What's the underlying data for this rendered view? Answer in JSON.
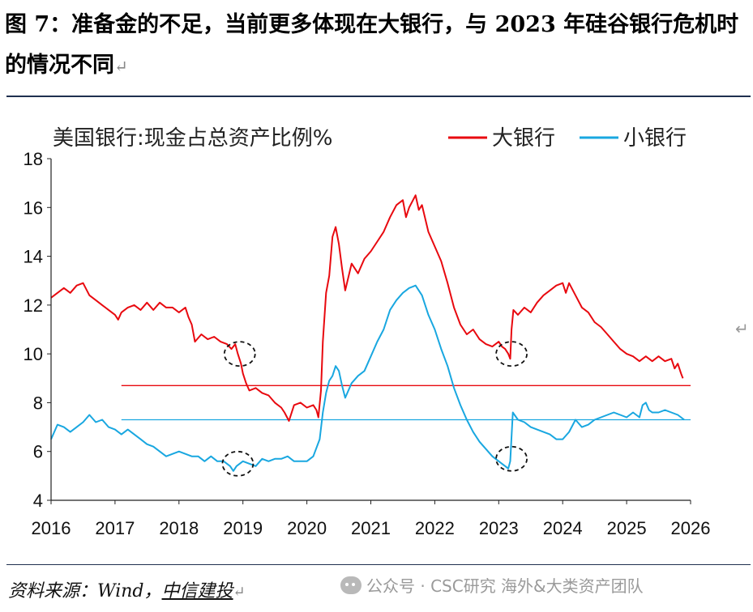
{
  "figure": {
    "title": "图 7：准备金的不足，当前更多体现在大银行，与 2023 年硅谷银行危机时的情况不同",
    "source_prefix": "资料来源：Wind，",
    "source_org": "中信建投",
    "watermark": "公众号 · CSC研究 海外&大类资产团队",
    "return_mark": "↵"
  },
  "chart_data": {
    "type": "line",
    "title": "美国银行:现金占总资产比例%",
    "xlabel": "",
    "ylabel": "",
    "xlim": [
      2016,
      2026
    ],
    "ylim": [
      4,
      18
    ],
    "x_ticks": [
      "2016",
      "2017",
      "2018",
      "2019",
      "2020",
      "2021",
      "2022",
      "2023",
      "2024",
      "2025",
      "2026"
    ],
    "y_ticks": [
      "4",
      "6",
      "8",
      "10",
      "12",
      "14",
      "16",
      "18"
    ],
    "series": [
      {
        "name": "大银行",
        "color": "#e8090f",
        "points": [
          [
            2016.0,
            12.3
          ],
          [
            2016.1,
            12.5
          ],
          [
            2016.2,
            12.7
          ],
          [
            2016.3,
            12.5
          ],
          [
            2016.4,
            12.8
          ],
          [
            2016.5,
            12.9
          ],
          [
            2016.6,
            12.4
          ],
          [
            2016.7,
            12.2
          ],
          [
            2016.8,
            12.0
          ],
          [
            2016.9,
            11.8
          ],
          [
            2017.0,
            11.6
          ],
          [
            2017.05,
            11.4
          ],
          [
            2017.1,
            11.7
          ],
          [
            2017.2,
            11.9
          ],
          [
            2017.3,
            12.0
          ],
          [
            2017.4,
            11.8
          ],
          [
            2017.5,
            12.1
          ],
          [
            2017.6,
            11.8
          ],
          [
            2017.7,
            12.1
          ],
          [
            2017.8,
            11.9
          ],
          [
            2017.9,
            11.9
          ],
          [
            2018.0,
            11.7
          ],
          [
            2018.1,
            11.9
          ],
          [
            2018.15,
            11.5
          ],
          [
            2018.2,
            11.2
          ],
          [
            2018.25,
            10.5
          ],
          [
            2018.35,
            10.8
          ],
          [
            2018.45,
            10.6
          ],
          [
            2018.55,
            10.7
          ],
          [
            2018.65,
            10.5
          ],
          [
            2018.75,
            10.4
          ],
          [
            2018.82,
            10.2
          ],
          [
            2018.88,
            10.4
          ],
          [
            2018.92,
            10.0
          ],
          [
            2018.97,
            9.6
          ],
          [
            2019.0,
            9.2
          ],
          [
            2019.05,
            8.8
          ],
          [
            2019.1,
            8.5
          ],
          [
            2019.2,
            8.6
          ],
          [
            2019.3,
            8.4
          ],
          [
            2019.4,
            8.3
          ],
          [
            2019.5,
            8.0
          ],
          [
            2019.6,
            7.8
          ],
          [
            2019.65,
            7.6
          ],
          [
            2019.72,
            7.25
          ],
          [
            2019.8,
            7.9
          ],
          [
            2019.9,
            8.0
          ],
          [
            2020.0,
            7.8
          ],
          [
            2020.1,
            7.9
          ],
          [
            2020.15,
            7.7
          ],
          [
            2020.18,
            7.4
          ],
          [
            2020.22,
            8.5
          ],
          [
            2020.25,
            10.5
          ],
          [
            2020.3,
            12.5
          ],
          [
            2020.35,
            13.2
          ],
          [
            2020.4,
            14.8
          ],
          [
            2020.45,
            15.2
          ],
          [
            2020.5,
            14.5
          ],
          [
            2020.55,
            13.5
          ],
          [
            2020.6,
            12.6
          ],
          [
            2020.7,
            13.7
          ],
          [
            2020.8,
            13.3
          ],
          [
            2020.9,
            13.9
          ],
          [
            2021.0,
            14.2
          ],
          [
            2021.1,
            14.6
          ],
          [
            2021.2,
            15.0
          ],
          [
            2021.3,
            15.6
          ],
          [
            2021.4,
            16.1
          ],
          [
            2021.5,
            16.3
          ],
          [
            2021.55,
            15.6
          ],
          [
            2021.6,
            16.0
          ],
          [
            2021.7,
            16.5
          ],
          [
            2021.75,
            15.9
          ],
          [
            2021.8,
            16.1
          ],
          [
            2021.9,
            15.0
          ],
          [
            2022.0,
            14.4
          ],
          [
            2022.1,
            13.8
          ],
          [
            2022.2,
            12.9
          ],
          [
            2022.3,
            11.9
          ],
          [
            2022.4,
            11.2
          ],
          [
            2022.5,
            10.8
          ],
          [
            2022.6,
            11.0
          ],
          [
            2022.7,
            10.6
          ],
          [
            2022.8,
            10.4
          ],
          [
            2022.9,
            10.3
          ],
          [
            2023.0,
            10.5
          ],
          [
            2023.05,
            10.3
          ],
          [
            2023.1,
            10.2
          ],
          [
            2023.15,
            10.0
          ],
          [
            2023.18,
            9.8
          ],
          [
            2023.2,
            11.0
          ],
          [
            2023.23,
            11.8
          ],
          [
            2023.3,
            11.6
          ],
          [
            2023.4,
            11.9
          ],
          [
            2023.5,
            11.7
          ],
          [
            2023.6,
            12.1
          ],
          [
            2023.7,
            12.4
          ],
          [
            2023.8,
            12.6
          ],
          [
            2023.9,
            12.8
          ],
          [
            2024.0,
            12.9
          ],
          [
            2024.05,
            12.5
          ],
          [
            2024.1,
            12.9
          ],
          [
            2024.2,
            12.4
          ],
          [
            2024.3,
            11.9
          ],
          [
            2024.4,
            11.7
          ],
          [
            2024.5,
            11.3
          ],
          [
            2024.6,
            11.1
          ],
          [
            2024.7,
            10.8
          ],
          [
            2024.8,
            10.5
          ],
          [
            2024.9,
            10.2
          ],
          [
            2025.0,
            10.0
          ],
          [
            2025.1,
            9.9
          ],
          [
            2025.2,
            9.7
          ],
          [
            2025.3,
            9.9
          ],
          [
            2025.4,
            9.7
          ],
          [
            2025.5,
            9.9
          ],
          [
            2025.6,
            9.7
          ],
          [
            2025.7,
            9.8
          ],
          [
            2025.75,
            9.4
          ],
          [
            2025.8,
            9.6
          ],
          [
            2025.85,
            9.2
          ],
          [
            2025.88,
            9.0
          ]
        ]
      },
      {
        "name": "小银行",
        "color": "#19a7e0",
        "points": [
          [
            2016.0,
            6.5
          ],
          [
            2016.1,
            7.1
          ],
          [
            2016.2,
            7.0
          ],
          [
            2016.3,
            6.8
          ],
          [
            2016.4,
            7.0
          ],
          [
            2016.5,
            7.2
          ],
          [
            2016.6,
            7.5
          ],
          [
            2016.7,
            7.2
          ],
          [
            2016.8,
            7.3
          ],
          [
            2016.9,
            7.0
          ],
          [
            2017.0,
            6.9
          ],
          [
            2017.1,
            6.7
          ],
          [
            2017.2,
            6.9
          ],
          [
            2017.3,
            6.7
          ],
          [
            2017.4,
            6.5
          ],
          [
            2017.5,
            6.3
          ],
          [
            2017.6,
            6.2
          ],
          [
            2017.7,
            6.0
          ],
          [
            2017.8,
            5.8
          ],
          [
            2017.9,
            5.9
          ],
          [
            2018.0,
            6.0
          ],
          [
            2018.1,
            5.9
          ],
          [
            2018.2,
            5.8
          ],
          [
            2018.3,
            5.8
          ],
          [
            2018.4,
            5.6
          ],
          [
            2018.5,
            5.8
          ],
          [
            2018.6,
            5.6
          ],
          [
            2018.7,
            5.6
          ],
          [
            2018.8,
            5.4
          ],
          [
            2018.85,
            5.2
          ],
          [
            2018.9,
            5.4
          ],
          [
            2019.0,
            5.6
          ],
          [
            2019.1,
            5.5
          ],
          [
            2019.2,
            5.4
          ],
          [
            2019.3,
            5.7
          ],
          [
            2019.4,
            5.6
          ],
          [
            2019.5,
            5.7
          ],
          [
            2019.6,
            5.7
          ],
          [
            2019.7,
            5.8
          ],
          [
            2019.8,
            5.6
          ],
          [
            2019.9,
            5.6
          ],
          [
            2020.0,
            5.6
          ],
          [
            2020.1,
            5.8
          ],
          [
            2020.2,
            6.5
          ],
          [
            2020.25,
            7.6
          ],
          [
            2020.3,
            8.4
          ],
          [
            2020.35,
            8.9
          ],
          [
            2020.4,
            9.1
          ],
          [
            2020.45,
            9.5
          ],
          [
            2020.5,
            9.3
          ],
          [
            2020.55,
            8.7
          ],
          [
            2020.6,
            8.2
          ],
          [
            2020.7,
            8.8
          ],
          [
            2020.8,
            9.1
          ],
          [
            2020.9,
            9.3
          ],
          [
            2021.0,
            9.9
          ],
          [
            2021.1,
            10.5
          ],
          [
            2021.2,
            11.0
          ],
          [
            2021.3,
            11.8
          ],
          [
            2021.4,
            12.2
          ],
          [
            2021.5,
            12.5
          ],
          [
            2021.6,
            12.7
          ],
          [
            2021.7,
            12.8
          ],
          [
            2021.8,
            12.4
          ],
          [
            2021.9,
            11.6
          ],
          [
            2022.0,
            11.0
          ],
          [
            2022.1,
            10.2
          ],
          [
            2022.2,
            9.5
          ],
          [
            2022.3,
            8.6
          ],
          [
            2022.4,
            7.9
          ],
          [
            2022.5,
            7.3
          ],
          [
            2022.6,
            6.8
          ],
          [
            2022.7,
            6.4
          ],
          [
            2022.8,
            6.1
          ],
          [
            2022.9,
            5.8
          ],
          [
            2023.0,
            5.6
          ],
          [
            2023.1,
            5.4
          ],
          [
            2023.15,
            5.3
          ],
          [
            2023.18,
            5.6
          ],
          [
            2023.2,
            6.6
          ],
          [
            2023.22,
            7.6
          ],
          [
            2023.3,
            7.3
          ],
          [
            2023.4,
            7.2
          ],
          [
            2023.5,
            7.0
          ],
          [
            2023.6,
            6.9
          ],
          [
            2023.7,
            6.8
          ],
          [
            2023.8,
            6.7
          ],
          [
            2023.9,
            6.5
          ],
          [
            2024.0,
            6.5
          ],
          [
            2024.1,
            6.8
          ],
          [
            2024.2,
            7.3
          ],
          [
            2024.3,
            7.0
          ],
          [
            2024.4,
            7.1
          ],
          [
            2024.5,
            7.3
          ],
          [
            2024.6,
            7.4
          ],
          [
            2024.7,
            7.5
          ],
          [
            2024.8,
            7.6
          ],
          [
            2024.9,
            7.5
          ],
          [
            2025.0,
            7.4
          ],
          [
            2025.1,
            7.6
          ],
          [
            2025.2,
            7.4
          ],
          [
            2025.25,
            7.9
          ],
          [
            2025.3,
            8.0
          ],
          [
            2025.35,
            7.7
          ],
          [
            2025.4,
            7.6
          ],
          [
            2025.5,
            7.6
          ],
          [
            2025.6,
            7.7
          ],
          [
            2025.7,
            7.6
          ],
          [
            2025.8,
            7.5
          ],
          [
            2025.85,
            7.4
          ],
          [
            2025.9,
            7.3
          ]
        ]
      }
    ],
    "reference_lines": [
      {
        "name": "大银行",
        "y": 8.7,
        "x_start": 2017.1,
        "x_end": 2026.0,
        "color": "#e8090f"
      },
      {
        "name": "小银行",
        "y": 7.3,
        "x_start": 2017.1,
        "x_end": 2026.0,
        "color": "#19a7e0"
      }
    ],
    "highlights": [
      {
        "name": "大银行",
        "x": 2018.95,
        "y": 10.0
      },
      {
        "name": "小银行",
        "x": 2018.92,
        "y": 5.5
      },
      {
        "name": "大银行",
        "x": 2023.2,
        "y": 10.0
      },
      {
        "name": "小银行",
        "x": 2023.2,
        "y": 5.7
      }
    ],
    "legend": "top-right"
  }
}
